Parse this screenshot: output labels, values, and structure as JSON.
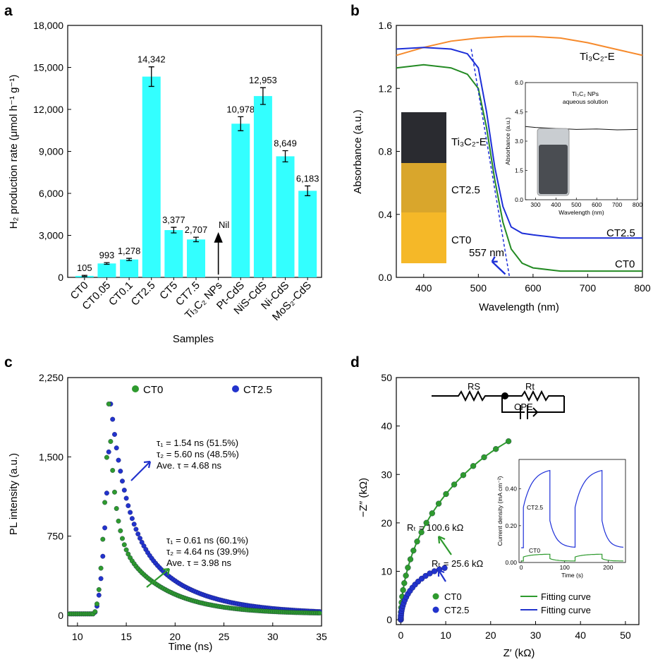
{
  "chart_data": [
    {
      "panel": "a",
      "type": "bar",
      "xlabel": "Samples",
      "ylabel": "H₂ production rate (μmol h⁻¹ g⁻¹)",
      "ylim": [
        0,
        18000
      ],
      "yticks": [
        "0",
        "3,000",
        "6,000",
        "9,000",
        "12,000",
        "15,000",
        "18,000"
      ],
      "categories": [
        "CT0",
        "CT0.05",
        "CT0.1",
        "CT2.5",
        "CT5",
        "CT7.5",
        "Ti₃C₂ NPs",
        "Pt-CdS",
        "NiS-CdS",
        "Ni-CdS",
        "MoS₂-CdS"
      ],
      "values": [
        105,
        993,
        1278,
        14342,
        3377,
        2707,
        null,
        10978,
        12953,
        8649,
        6183
      ],
      "labels": [
        "105",
        "993",
        "1,278",
        "14,342",
        "3,377",
        "2,707",
        "Nil",
        "10,978",
        "12,953",
        "8,649",
        "6,183"
      ],
      "errors": [
        40,
        60,
        80,
        700,
        200,
        160,
        0,
        500,
        600,
        400,
        350
      ],
      "bar_color": "#33ffff"
    },
    {
      "panel": "b",
      "type": "line",
      "xlabel": "Wavelength (nm)",
      "ylabel": "Absorbance (a.u.)",
      "xlim": [
        350,
        800
      ],
      "ylim": [
        0,
        1.6
      ],
      "xticks": [
        "400",
        "500",
        "600",
        "700",
        "800"
      ],
      "yticks": [
        "0.0",
        "0.4",
        "0.8",
        "1.2",
        "1.6"
      ],
      "series": [
        {
          "name": "Ti₃C₂-E",
          "color": "#f68a2c",
          "x": [
            350,
            400,
            450,
            500,
            550,
            600,
            650,
            700,
            750,
            800
          ],
          "y": [
            1.41,
            1.46,
            1.5,
            1.52,
            1.53,
            1.53,
            1.52,
            1.49,
            1.45,
            1.41
          ]
        },
        {
          "name": "CT2.5",
          "color": "#1d2fd8",
          "x": [
            350,
            400,
            450,
            480,
            500,
            515,
            530,
            545,
            560,
            580,
            600,
            650,
            700,
            800
          ],
          "y": [
            1.45,
            1.46,
            1.45,
            1.42,
            1.33,
            1.05,
            0.7,
            0.45,
            0.32,
            0.28,
            0.27,
            0.25,
            0.25,
            0.25
          ]
        },
        {
          "name": "CT0",
          "color": "#238a23",
          "x": [
            350,
            400,
            450,
            480,
            500,
            515,
            530,
            545,
            560,
            580,
            600,
            650,
            700,
            800
          ],
          "y": [
            1.33,
            1.35,
            1.33,
            1.29,
            1.2,
            0.95,
            0.62,
            0.35,
            0.18,
            0.09,
            0.06,
            0.04,
            0.04,
            0.04
          ]
        }
      ],
      "edge_label": "557 nm",
      "photo_labels": [
        "Ti₃C₂-E",
        "CT2.5",
        "CT0"
      ],
      "inset": {
        "title_line1": "Ti₃C₂ NPs",
        "title_line2": "aqueous solution",
        "xlabel": "Wavelength (nm)",
        "ylabel": "Absorbance (a.u.)",
        "xlim": [
          250,
          800
        ],
        "ylim": [
          0,
          6.0
        ],
        "xticks": [
          "300",
          "400",
          "500",
          "600",
          "700",
          "800"
        ],
        "yticks": [
          "0.0",
          "1.5",
          "3.0",
          "4.5",
          "6.0"
        ],
        "x": [
          250,
          300,
          400,
          500,
          600,
          700,
          800
        ],
        "y": [
          3.75,
          3.7,
          3.65,
          3.6,
          3.62,
          3.58,
          3.6
        ]
      }
    },
    {
      "panel": "c",
      "type": "scatter",
      "xlabel": "Time (ns)",
      "ylabel": "PL intensity (a.u.)",
      "xlim": [
        9,
        35
      ],
      "ylim": [
        -100,
        2250
      ],
      "xticks": [
        "10",
        "15",
        "20",
        "25",
        "30",
        "35"
      ],
      "yticks": [
        "0",
        "750",
        "1,500",
        "2,250"
      ],
      "series": [
        {
          "name": "CT0",
          "color": "#2e9a2e",
          "peak": 2000,
          "t0": 13.2,
          "tau_fast": 0.61,
          "tau_slow": 4.64,
          "frac": 0.6
        },
        {
          "name": "CT2.5",
          "color": "#2233cc",
          "peak": 2000,
          "t0": 13.4,
          "tau_fast": 1.54,
          "tau_slow": 5.6,
          "frac": 0.515
        }
      ],
      "annotation_ct25": [
        "τ₁ = 1.54 ns (51.5%)",
        "τ₂ = 5.60 ns (48.5%)",
        "Ave. τ = 4.68 ns"
      ],
      "annotation_ct0": [
        "τ₁ = 0.61 ns (60.1%)",
        "τ₂ = 4.64 ns (39.9%)",
        "Ave. τ = 3.98 ns"
      ]
    },
    {
      "panel": "d",
      "type": "scatter",
      "xlabel": "Z′ (kΩ)",
      "ylabel": "−Z″ (kΩ)",
      "xlim": [
        -1,
        53
      ],
      "ylim": [
        -1,
        50
      ],
      "xticks": [
        "0",
        "10",
        "20",
        "30",
        "40",
        "50"
      ],
      "yticks": [
        "0",
        "10",
        "20",
        "30",
        "40",
        "50"
      ],
      "series": [
        {
          "name": "CT0",
          "color": "#2e9a2e",
          "fit_name": "Fitting curve",
          "R": 100.6
        },
        {
          "name": "CT2.5",
          "color": "#2233cc",
          "fit_name": "Fitting curve",
          "R": 25.6
        }
      ],
      "rt_ct0": "Rₜ = 100.6 kΩ",
      "rt_ct25": "Rₜ = 25.6 kΩ",
      "circuit_labels": {
        "rs": "RS",
        "rt": "Rt",
        "cpe": "CPE"
      },
      "inset": {
        "xlabel": "Time (s)",
        "ylabel": "Current density (mA cm⁻²)",
        "xlim": [
          -5,
          240
        ],
        "ylim": [
          0,
          0.56
        ],
        "xticks": [
          "0",
          "100",
          "200"
        ],
        "yticks": [
          "0.00",
          "0.20",
          "0.40"
        ],
        "minor_xticks": [
          "50",
          "150"
        ],
        "series_labels": [
          "CT2.5",
          "CT0"
        ]
      }
    }
  ],
  "panel_labels": [
    "a",
    "b",
    "c",
    "d"
  ]
}
